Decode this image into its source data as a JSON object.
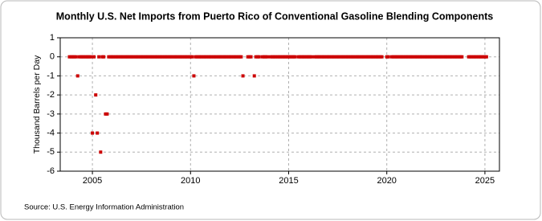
{
  "chart_data": {
    "type": "scatter",
    "title": "Monthly U.S. Net Imports from Puerto Rico of Conventional Gasoline Blending Components",
    "y_label": "Thousand Barrels per Day",
    "source": "Source: U.S. Energy Information Administration",
    "color": "#cc0000",
    "grid": true,
    "xlim": [
      2003.36,
      2025.74
    ],
    "xticks": [
      2005,
      2010,
      2015,
      2020,
      2025
    ],
    "ylim": [
      -6,
      1
    ],
    "yticks": [
      -6,
      -5,
      -4,
      -3,
      -2,
      -1,
      0,
      1
    ],
    "x": [
      2003.83,
      2003.92,
      2004.0,
      2004.08,
      2004.17,
      2004.25,
      2004.33,
      2004.42,
      2004.5,
      2004.58,
      2004.67,
      2004.75,
      2004.83,
      2004.92,
      2005.0,
      2005.08,
      2005.17,
      2005.25,
      2005.33,
      2005.42,
      2005.5,
      2005.58,
      2005.67,
      2005.75,
      2005.83,
      2005.92,
      2006.0,
      2006.08,
      2006.17,
      2006.25,
      2006.33,
      2006.42,
      2006.5,
      2006.58,
      2006.67,
      2006.75,
      2006.83,
      2006.92,
      2007.0,
      2007.08,
      2007.17,
      2007.25,
      2007.33,
      2007.42,
      2007.5,
      2007.58,
      2007.67,
      2007.75,
      2007.83,
      2007.92,
      2008.0,
      2008.08,
      2008.17,
      2008.25,
      2008.33,
      2008.42,
      2008.5,
      2008.58,
      2008.67,
      2008.75,
      2008.83,
      2008.92,
      2009.0,
      2009.08,
      2009.17,
      2009.25,
      2009.33,
      2009.42,
      2009.5,
      2009.58,
      2009.67,
      2009.75,
      2009.83,
      2009.92,
      2010.0,
      2010.08,
      2010.17,
      2010.25,
      2010.33,
      2010.42,
      2010.5,
      2010.58,
      2010.67,
      2010.75,
      2010.83,
      2010.92,
      2011.0,
      2011.08,
      2011.17,
      2011.25,
      2011.33,
      2011.42,
      2011.5,
      2011.58,
      2011.67,
      2011.75,
      2011.83,
      2011.92,
      2012.0,
      2012.08,
      2012.17,
      2012.25,
      2012.33,
      2012.42,
      2012.5,
      2012.58,
      2012.67,
      2012.92,
      2013.0,
      2013.08,
      2013.25,
      2013.33,
      2013.42,
      2013.5,
      2013.67,
      2013.75,
      2013.83,
      2013.92,
      2014.08,
      2014.17,
      2014.25,
      2014.33,
      2014.42,
      2014.5,
      2014.58,
      2014.67,
      2014.75,
      2014.83,
      2014.92,
      2015.0,
      2015.08,
      2015.17,
      2015.25,
      2015.33,
      2015.5,
      2015.58,
      2015.67,
      2015.75,
      2015.83,
      2015.92,
      2016.0,
      2016.08,
      2016.17,
      2016.33,
      2016.42,
      2016.5,
      2016.58,
      2016.67,
      2016.75,
      2016.83,
      2016.92,
      2017.0,
      2017.08,
      2017.17,
      2017.25,
      2017.33,
      2017.42,
      2017.5,
      2017.58,
      2017.67,
      2017.75,
      2017.83,
      2017.92,
      2018.0,
      2018.08,
      2018.17,
      2018.25,
      2018.33,
      2018.42,
      2018.5,
      2018.58,
      2018.67,
      2018.75,
      2018.83,
      2018.92,
      2019.0,
      2019.08,
      2019.17,
      2019.25,
      2019.33,
      2019.42,
      2019.5,
      2019.58,
      2019.67,
      2019.75,
      2020.0,
      2020.08,
      2020.25,
      2020.33,
      2020.42,
      2020.5,
      2020.58,
      2020.67,
      2020.75,
      2020.83,
      2020.92,
      2021.0,
      2021.08,
      2021.17,
      2021.25,
      2021.33,
      2021.42,
      2021.5,
      2021.58,
      2021.67,
      2021.75,
      2021.83,
      2021.92,
      2022.0,
      2022.08,
      2022.17,
      2022.25,
      2022.33,
      2022.42,
      2022.5,
      2022.58,
      2022.67,
      2022.75,
      2022.83,
      2022.92,
      2023.0,
      2023.08,
      2023.17,
      2023.25,
      2023.33,
      2023.42,
      2023.5,
      2023.58,
      2023.67,
      2023.75,
      2023.83,
      2024.17,
      2024.25,
      2024.33,
      2024.42,
      2024.5,
      2024.58,
      2024.67,
      2024.75,
      2024.83,
      2024.92,
      2025.0,
      2025.08
    ],
    "values": [
      0,
      0,
      0,
      0,
      0,
      -1,
      0,
      0,
      0,
      0,
      0,
      0,
      0,
      0,
      -4,
      0,
      -2,
      -4,
      0,
      -5,
      0,
      0,
      -3,
      -3,
      0,
      0,
      0,
      0,
      0,
      0,
      0,
      0,
      0,
      0,
      0,
      0,
      0,
      0,
      0,
      0,
      0,
      0,
      0,
      0,
      0,
      0,
      0,
      0,
      0,
      0,
      0,
      0,
      0,
      0,
      0,
      0,
      0,
      0,
      0,
      0,
      0,
      0,
      0,
      0,
      0,
      0,
      0,
      0,
      0,
      0,
      0,
      0,
      0,
      0,
      0,
      0,
      -1,
      0,
      0,
      0,
      0,
      0,
      0,
      0,
      0,
      0,
      0,
      0,
      0,
      0,
      0,
      0,
      0,
      0,
      0,
      0,
      0,
      0,
      0,
      0,
      0,
      0,
      0,
      0,
      0,
      0,
      -1,
      0,
      0,
      0,
      -1,
      0,
      0,
      0,
      0,
      0,
      0,
      0,
      0,
      0,
      0,
      0,
      0,
      0,
      0,
      0,
      0,
      0,
      0,
      0,
      0,
      0,
      0,
      0,
      0,
      0,
      0,
      0,
      0,
      0,
      0,
      0,
      0,
      0,
      0,
      0,
      0,
      0,
      0,
      0,
      0,
      0,
      0,
      0,
      0,
      0,
      0,
      0,
      0,
      0,
      0,
      0,
      0,
      0,
      0,
      0,
      0,
      0,
      0,
      0,
      0,
      0,
      0,
      0,
      0,
      0,
      0,
      0,
      0,
      0,
      0,
      0,
      0,
      0,
      0,
      0,
      0,
      0,
      0,
      0,
      0,
      0,
      0,
      0,
      0,
      0,
      0,
      0,
      0,
      0,
      0,
      0,
      0,
      0,
      0,
      0,
      0,
      0,
      0,
      0,
      0,
      0,
      0,
      0,
      0,
      0,
      0,
      0,
      0,
      0,
      0,
      0,
      0,
      0,
      0,
      0,
      0,
      0,
      0,
      0,
      0,
      0,
      0,
      0,
      0,
      0,
      0,
      0,
      0,
      0,
      0,
      0,
      0
    ]
  }
}
